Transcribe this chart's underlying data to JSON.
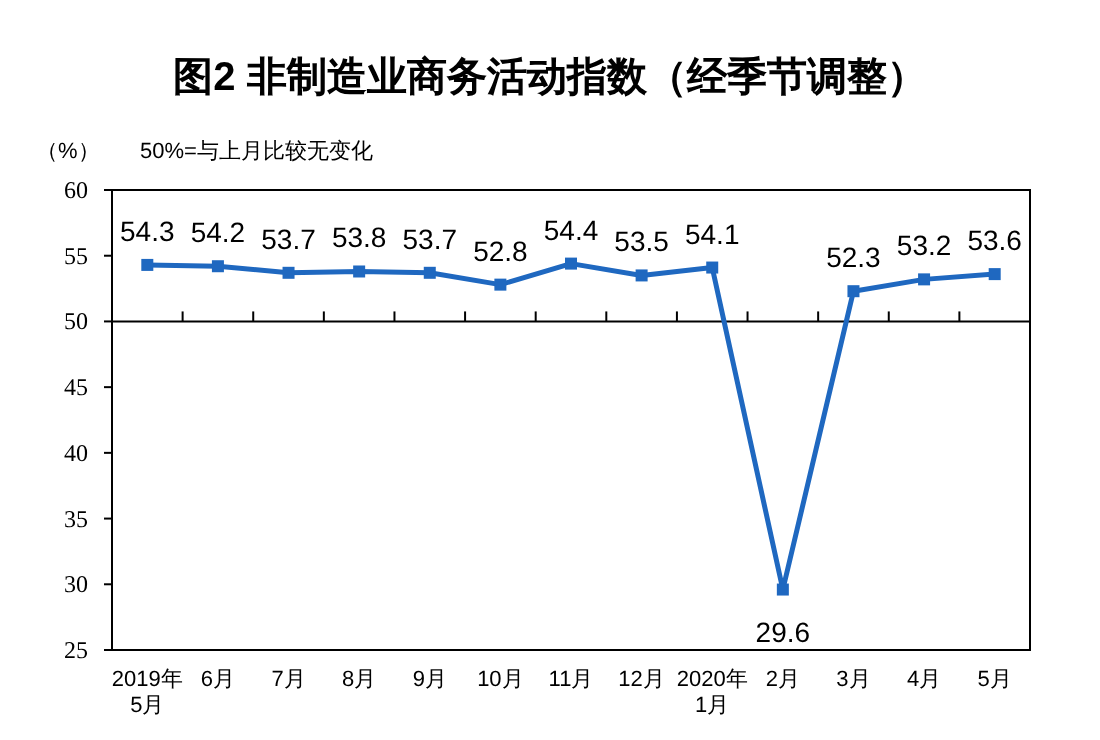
{
  "chart_data": {
    "type": "line",
    "title": "图2 非制造业商务活动指数（经季节调整）",
    "ylabel": "（%）",
    "annotations": [
      "50%=与上月比较无变化"
    ],
    "categories": [
      "2019年\n5月",
      "6月",
      "7月",
      "8月",
      "9月",
      "10月",
      "11月",
      "12月",
      "2020年\n1月",
      "2月",
      "3月",
      "4月",
      "5月"
    ],
    "series": [
      {
        "color": "#1f68c0",
        "values": [
          54.3,
          54.2,
          53.7,
          53.8,
          53.7,
          52.8,
          54.4,
          53.5,
          54.1,
          29.6,
          52.3,
          53.2,
          53.6
        ]
      }
    ],
    "ylim": [
      25,
      60
    ],
    "yticks": [
      25,
      30,
      35,
      40,
      45,
      50,
      55,
      60
    ],
    "ref_lines": [
      {
        "axis": "y",
        "value": 50,
        "color": "#000000"
      }
    ],
    "marker": "square",
    "line_style": "solid",
    "data_labels": true,
    "grid": false
  }
}
